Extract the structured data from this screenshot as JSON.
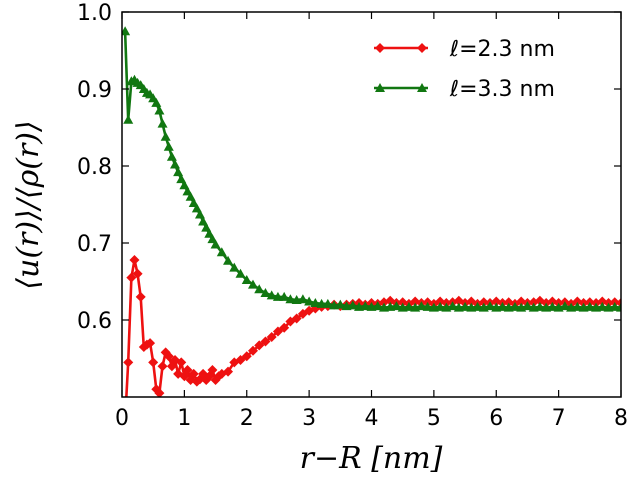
{
  "chart_data": {
    "type": "line",
    "xlabel": "r−R [nm]",
    "ylabel": "⟨u(r)⟩/⟨ρ(r)⟩",
    "xlim": [
      0,
      8
    ],
    "ylim": [
      0.5,
      1.0
    ],
    "xticks": [
      "0",
      "1",
      "2",
      "3",
      "4",
      "5",
      "6",
      "7",
      "8"
    ],
    "yticks": [
      "0.6",
      "0.7",
      "0.8",
      "0.9",
      "1.0"
    ],
    "grid": false,
    "legend_position": "top-right",
    "series": [
      {
        "name": "ℓ=2.3 nm",
        "color": "#ee1111",
        "marker": "diamond",
        "points": [
          [
            0.05,
            0.47
          ],
          [
            0.1,
            0.545
          ],
          [
            0.15,
            0.655
          ],
          [
            0.2,
            0.678
          ],
          [
            0.25,
            0.66
          ],
          [
            0.3,
            0.63
          ],
          [
            0.35,
            0.565
          ],
          [
            0.4,
            0.568
          ],
          [
            0.45,
            0.57
          ],
          [
            0.5,
            0.545
          ],
          [
            0.55,
            0.51
          ],
          [
            0.6,
            0.505
          ],
          [
            0.65,
            0.54
          ],
          [
            0.7,
            0.558
          ],
          [
            0.75,
            0.553
          ],
          [
            0.8,
            0.54
          ],
          [
            0.85,
            0.548
          ],
          [
            0.9,
            0.53
          ],
          [
            0.95,
            0.545
          ],
          [
            1.0,
            0.527
          ],
          [
            1.05,
            0.535
          ],
          [
            1.1,
            0.522
          ],
          [
            1.15,
            0.53
          ],
          [
            1.2,
            0.52
          ],
          [
            1.25,
            0.523
          ],
          [
            1.3,
            0.53
          ],
          [
            1.35,
            0.522
          ],
          [
            1.4,
            0.527
          ],
          [
            1.45,
            0.535
          ],
          [
            1.5,
            0.522
          ],
          [
            1.55,
            0.527
          ],
          [
            1.6,
            0.53
          ],
          [
            1.7,
            0.533
          ],
          [
            1.8,
            0.545
          ],
          [
            1.9,
            0.548
          ],
          [
            2.0,
            0.553
          ],
          [
            2.1,
            0.56
          ],
          [
            2.2,
            0.567
          ],
          [
            2.3,
            0.572
          ],
          [
            2.4,
            0.578
          ],
          [
            2.5,
            0.585
          ],
          [
            2.6,
            0.59
          ],
          [
            2.7,
            0.598
          ],
          [
            2.8,
            0.602
          ],
          [
            2.9,
            0.608
          ],
          [
            3.0,
            0.612
          ],
          [
            3.1,
            0.615
          ],
          [
            3.2,
            0.617
          ],
          [
            3.3,
            0.618
          ],
          [
            3.4,
            0.62
          ],
          [
            3.5,
            0.618
          ],
          [
            3.6,
            0.62
          ],
          [
            3.7,
            0.621
          ],
          [
            3.8,
            0.622
          ],
          [
            3.9,
            0.62
          ],
          [
            4.0,
            0.622
          ],
          [
            4.1,
            0.621
          ],
          [
            4.2,
            0.623
          ],
          [
            4.3,
            0.625
          ],
          [
            4.4,
            0.622
          ],
          [
            4.5,
            0.623
          ],
          [
            4.6,
            0.621
          ],
          [
            4.7,
            0.624
          ],
          [
            4.8,
            0.622
          ],
          [
            4.9,
            0.623
          ],
          [
            5.0,
            0.621
          ],
          [
            5.1,
            0.624
          ],
          [
            5.2,
            0.622
          ],
          [
            5.3,
            0.623
          ],
          [
            5.4,
            0.625
          ],
          [
            5.5,
            0.622
          ],
          [
            5.6,
            0.624
          ],
          [
            5.7,
            0.621
          ],
          [
            5.8,
            0.623
          ],
          [
            5.9,
            0.622
          ],
          [
            6.0,
            0.624
          ],
          [
            6.1,
            0.622
          ],
          [
            6.2,
            0.623
          ],
          [
            6.3,
            0.621
          ],
          [
            6.4,
            0.624
          ],
          [
            6.5,
            0.622
          ],
          [
            6.6,
            0.623
          ],
          [
            6.7,
            0.625
          ],
          [
            6.8,
            0.622
          ],
          [
            6.9,
            0.624
          ],
          [
            7.0,
            0.622
          ],
          [
            7.1,
            0.623
          ],
          [
            7.2,
            0.621
          ],
          [
            7.3,
            0.624
          ],
          [
            7.4,
            0.622
          ],
          [
            7.5,
            0.623
          ],
          [
            7.6,
            0.622
          ],
          [
            7.7,
            0.624
          ],
          [
            7.8,
            0.622
          ],
          [
            7.9,
            0.623
          ],
          [
            8.0,
            0.622
          ]
        ]
      },
      {
        "name": "ℓ=3.3 nm",
        "color": "#117711",
        "marker": "triangle",
        "points": [
          [
            0.05,
            0.975
          ],
          [
            0.1,
            0.86
          ],
          [
            0.15,
            0.91
          ],
          [
            0.2,
            0.912
          ],
          [
            0.25,
            0.908
          ],
          [
            0.3,
            0.905
          ],
          [
            0.35,
            0.9
          ],
          [
            0.4,
            0.895
          ],
          [
            0.45,
            0.893
          ],
          [
            0.5,
            0.888
          ],
          [
            0.55,
            0.882
          ],
          [
            0.6,
            0.872
          ],
          [
            0.65,
            0.855
          ],
          [
            0.7,
            0.838
          ],
          [
            0.75,
            0.825
          ],
          [
            0.8,
            0.812
          ],
          [
            0.85,
            0.802
          ],
          [
            0.9,
            0.792
          ],
          [
            0.95,
            0.783
          ],
          [
            1.0,
            0.775
          ],
          [
            1.05,
            0.767
          ],
          [
            1.1,
            0.76
          ],
          [
            1.15,
            0.752
          ],
          [
            1.2,
            0.745
          ],
          [
            1.25,
            0.737
          ],
          [
            1.3,
            0.728
          ],
          [
            1.35,
            0.72
          ],
          [
            1.4,
            0.712
          ],
          [
            1.45,
            0.705
          ],
          [
            1.5,
            0.698
          ],
          [
            1.6,
            0.688
          ],
          [
            1.7,
            0.677
          ],
          [
            1.8,
            0.668
          ],
          [
            1.9,
            0.66
          ],
          [
            2.0,
            0.652
          ],
          [
            2.1,
            0.646
          ],
          [
            2.2,
            0.64
          ],
          [
            2.3,
            0.635
          ],
          [
            2.4,
            0.632
          ],
          [
            2.5,
            0.63
          ],
          [
            2.6,
            0.63
          ],
          [
            2.7,
            0.627
          ],
          [
            2.8,
            0.626
          ],
          [
            2.9,
            0.627
          ],
          [
            3.0,
            0.624
          ],
          [
            3.1,
            0.622
          ],
          [
            3.2,
            0.621
          ],
          [
            3.3,
            0.621
          ],
          [
            3.4,
            0.619
          ],
          [
            3.5,
            0.62
          ],
          [
            3.6,
            0.618
          ],
          [
            3.7,
            0.619
          ],
          [
            3.8,
            0.617
          ],
          [
            3.9,
            0.618
          ],
          [
            4.0,
            0.617
          ],
          [
            4.1,
            0.618
          ],
          [
            4.2,
            0.616
          ],
          [
            4.3,
            0.617
          ],
          [
            4.4,
            0.618
          ],
          [
            4.5,
            0.616
          ],
          [
            4.6,
            0.617
          ],
          [
            4.7,
            0.616
          ],
          [
            4.8,
            0.618
          ],
          [
            4.9,
            0.617
          ],
          [
            5.0,
            0.616
          ],
          [
            5.1,
            0.617
          ],
          [
            5.2,
            0.616
          ],
          [
            5.3,
            0.618
          ],
          [
            5.4,
            0.616
          ],
          [
            5.5,
            0.617
          ],
          [
            5.6,
            0.616
          ],
          [
            5.7,
            0.617
          ],
          [
            5.8,
            0.616
          ],
          [
            5.9,
            0.618
          ],
          [
            6.0,
            0.616
          ],
          [
            6.1,
            0.617
          ],
          [
            6.2,
            0.616
          ],
          [
            6.3,
            0.617
          ],
          [
            6.4,
            0.616
          ],
          [
            6.5,
            0.618
          ],
          [
            6.6,
            0.616
          ],
          [
            6.7,
            0.617
          ],
          [
            6.8,
            0.616
          ],
          [
            6.9,
            0.617
          ],
          [
            7.0,
            0.616
          ],
          [
            7.1,
            0.618
          ],
          [
            7.2,
            0.616
          ],
          [
            7.3,
            0.617
          ],
          [
            7.4,
            0.616
          ],
          [
            7.5,
            0.617
          ],
          [
            7.6,
            0.616
          ],
          [
            7.7,
            0.617
          ],
          [
            7.8,
            0.616
          ],
          [
            7.9,
            0.617
          ],
          [
            8.0,
            0.616
          ]
        ]
      }
    ]
  }
}
